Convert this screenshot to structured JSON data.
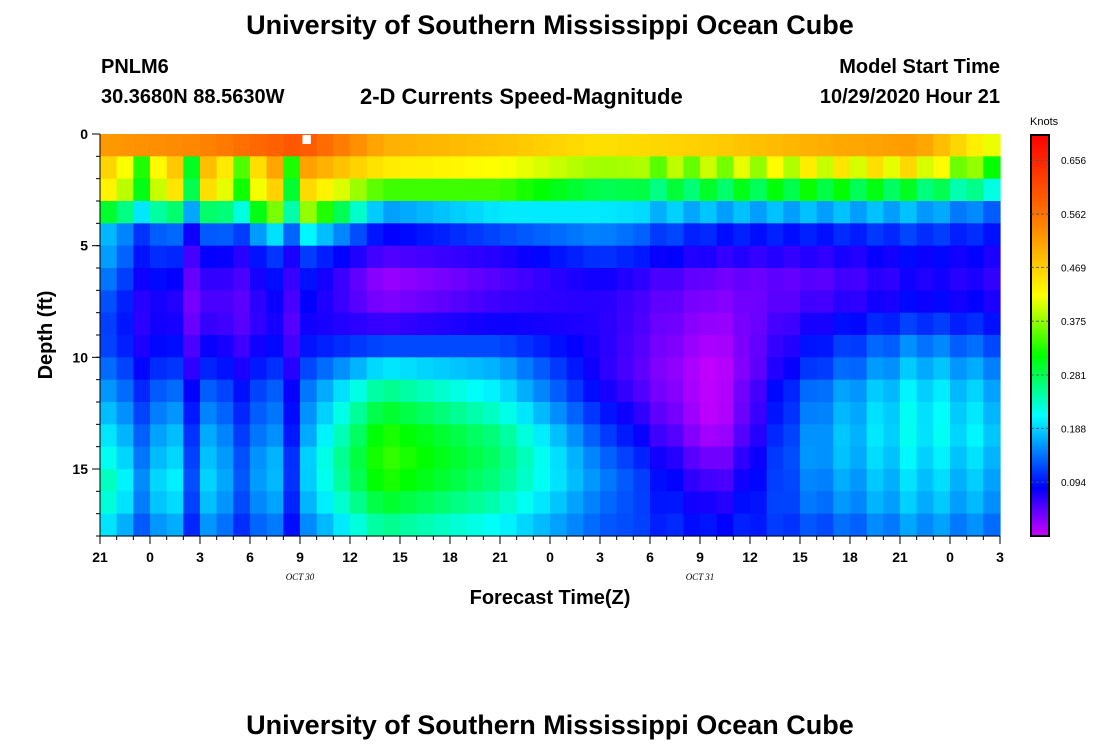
{
  "header": {
    "title_top": "University of Southern Mississippi Ocean Cube",
    "title_bottom": "University of Southern Mississippi Ocean Cube",
    "station_id": "PNLM6",
    "station_coords": "30.3680N 88.5630W",
    "plot_title": "2-D Currents Speed-Magnitude",
    "model_start_label": "Model Start Time",
    "model_start_value": "10/29/2020 Hour 21"
  },
  "chart_data": {
    "type": "heatmap",
    "title": "2-D Currents Speed-Magnitude",
    "xlabel": "Forecast Time(Z)",
    "ylabel": "Depth (ft)",
    "x_tick_labels": [
      "21",
      "0",
      "3",
      "6",
      "9",
      "12",
      "15",
      "18",
      "21",
      "0",
      "3",
      "6",
      "9",
      "12",
      "15",
      "18",
      "21",
      "0",
      "3"
    ],
    "x_date_labels": [
      {
        "text": "OCT  30",
        "hour_index": 12
      },
      {
        "text": "OCT  31",
        "hour_index": 36
      }
    ],
    "xlim_hours": [
      0,
      54
    ],
    "x_tick_step_hours": 3,
    "ylim_ft": [
      0,
      18
    ],
    "y_ticks": [
      0,
      5,
      10,
      15
    ],
    "y_minor_tick_ft": 1,
    "time_step_hours": 1,
    "depth_rows": 18,
    "units": "Knots",
    "colorbar": {
      "label": "Knots",
      "ticks": [
        0.656,
        0.562,
        0.469,
        0.375,
        0.281,
        0.188,
        0.094
      ],
      "vmin": 0.0,
      "vmax": 0.7,
      "colors": [
        "#cc00ff",
        "#0000ff",
        "#00ffff",
        "#00ff00",
        "#ffff00",
        "#ff8000",
        "#ff0000"
      ]
    },
    "missing_cell": {
      "hour": 12,
      "depth_row": 0
    },
    "speed_knots_samples": [
      {
        "hour": 0,
        "profile": [
          0.52,
          0.46,
          0.43,
          0.3,
          0.18,
          0.17,
          0.15,
          0.13,
          0.12,
          0.12,
          0.14,
          0.16,
          0.18,
          0.2,
          0.22,
          0.24,
          0.23,
          0.2
        ]
      },
      {
        "hour": 6,
        "profile": [
          0.54,
          0.48,
          0.45,
          0.26,
          0.12,
          0.08,
          0.06,
          0.05,
          0.06,
          0.08,
          0.1,
          0.13,
          0.15,
          0.17,
          0.18,
          0.19,
          0.18,
          0.16
        ]
      },
      {
        "hour": 12,
        "profile": [
          0.6,
          0.52,
          0.47,
          0.4,
          0.22,
          0.12,
          0.1,
          0.09,
          0.08,
          0.09,
          0.11,
          0.13,
          0.14,
          0.15,
          0.17,
          0.17,
          0.16,
          0.14
        ]
      },
      {
        "hour": 17,
        "profile": [
          0.5,
          0.44,
          0.34,
          0.16,
          0.08,
          0.05,
          0.02,
          0.03,
          0.06,
          0.12,
          0.2,
          0.26,
          0.3,
          0.33,
          0.34,
          0.33,
          0.3,
          0.26
        ]
      },
      {
        "hour": 24,
        "profile": [
          0.48,
          0.42,
          0.34,
          0.2,
          0.12,
          0.07,
          0.05,
          0.06,
          0.08,
          0.12,
          0.17,
          0.2,
          0.23,
          0.26,
          0.27,
          0.26,
          0.24,
          0.21
        ]
      },
      {
        "hour": 30,
        "profile": [
          0.45,
          0.38,
          0.28,
          0.2,
          0.15,
          0.11,
          0.08,
          0.07,
          0.07,
          0.07,
          0.07,
          0.08,
          0.1,
          0.12,
          0.14,
          0.15,
          0.14,
          0.13
        ]
      },
      {
        "hour": 37,
        "profile": [
          0.47,
          0.4,
          0.3,
          0.18,
          0.1,
          0.07,
          0.04,
          0.03,
          0.02,
          0.01,
          0.0,
          0.0,
          0.0,
          0.01,
          0.03,
          0.05,
          0.07,
          0.09
        ]
      },
      {
        "hour": 43,
        "profile": [
          0.5,
          0.44,
          0.32,
          0.18,
          0.1,
          0.07,
          0.05,
          0.06,
          0.08,
          0.1,
          0.12,
          0.15,
          0.16,
          0.17,
          0.17,
          0.16,
          0.15,
          0.13
        ]
      },
      {
        "hour": 49,
        "profile": [
          0.52,
          0.46,
          0.3,
          0.18,
          0.12,
          0.09,
          0.08,
          0.09,
          0.12,
          0.16,
          0.19,
          0.21,
          0.22,
          0.22,
          0.21,
          0.2,
          0.19,
          0.17
        ]
      },
      {
        "hour": 54,
        "profile": [
          0.4,
          0.34,
          0.24,
          0.14,
          0.1,
          0.08,
          0.07,
          0.08,
          0.1,
          0.13,
          0.16,
          0.18,
          0.19,
          0.2,
          0.19,
          0.18,
          0.17,
          0.15
        ]
      }
    ]
  }
}
